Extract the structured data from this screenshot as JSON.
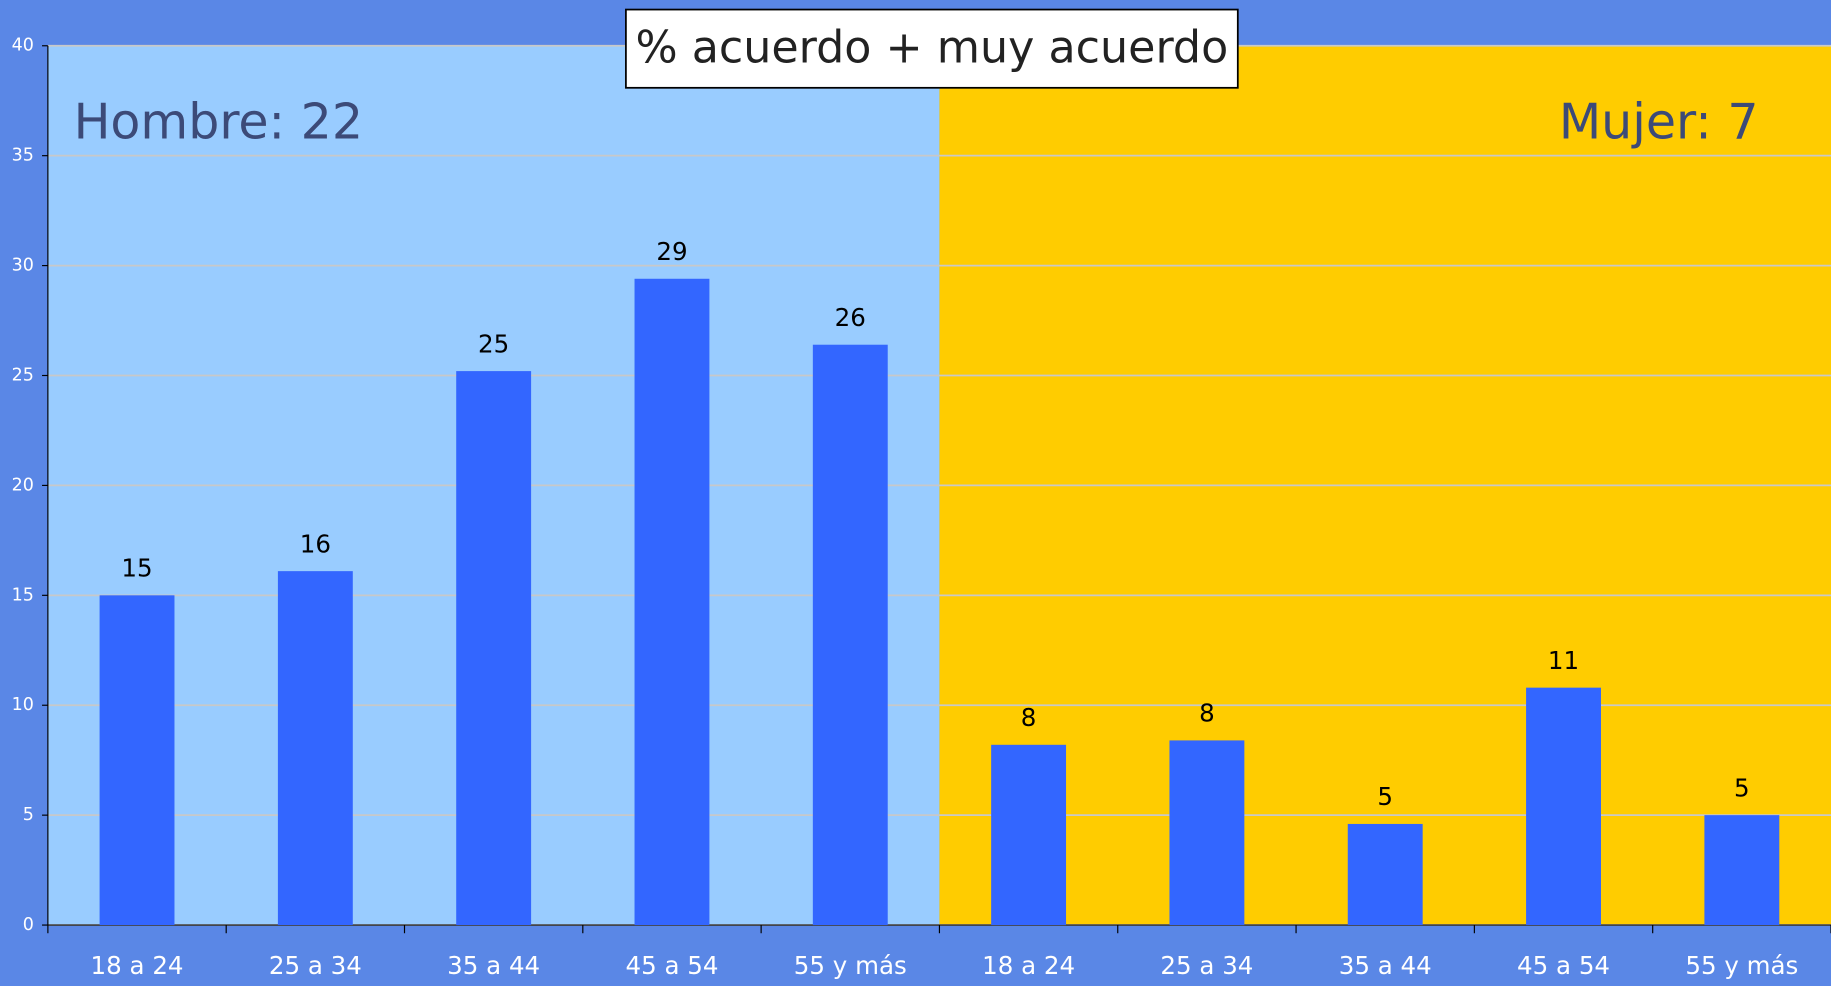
{
  "chart_data": {
    "type": "bar",
    "title": "% acuerdo + muy acuerdo",
    "categories": [
      "18 a 24",
      "25 a 34",
      "35 a 44",
      "45 a 54",
      "55 y más",
      "18 a 24",
      "25 a 34",
      "35 a 44",
      "45 a 54",
      "55 y más"
    ],
    "values": [
      15.0,
      16.1,
      25.2,
      29.4,
      26.4,
      8.2,
      8.4,
      4.6,
      10.8,
      5.0
    ],
    "value_labels": [
      "15",
      "16",
      "25",
      "29",
      "26",
      "8",
      "8",
      "5",
      "11",
      "5"
    ],
    "color": "#3366ff",
    "annotations": [
      "Hombre: 22",
      "Mujer: 7"
    ],
    "panel_colors": [
      "#99ccff",
      "#ffcc00"
    ],
    "ylim": [
      0,
      40
    ],
    "yticks": [
      0,
      5,
      10,
      15,
      20,
      25,
      30,
      35,
      40
    ],
    "grid": true
  }
}
